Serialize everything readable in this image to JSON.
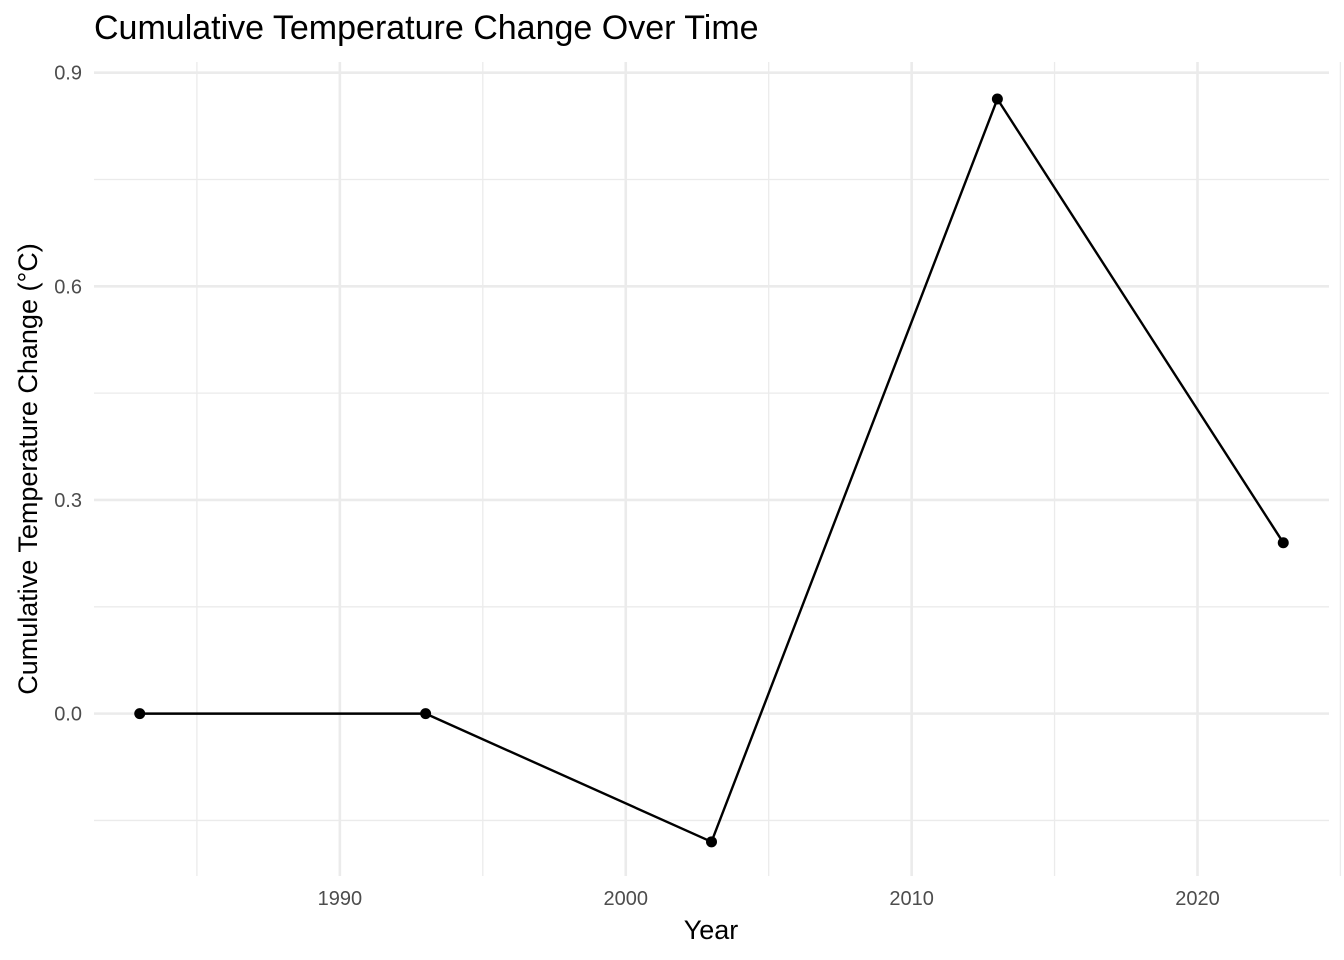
{
  "chart_data": {
    "type": "line",
    "title": "Cumulative Temperature Change Over Time",
    "xlabel": "Year",
    "ylabel": "Cumulative Temperature Change (°C)",
    "x": [
      1983,
      1993,
      2003,
      2013,
      2023
    ],
    "series": [
      {
        "values": [
          0.0,
          0.0,
          -0.18,
          0.863,
          0.24
        ]
      }
    ],
    "xlim": [
      1981.4,
      2024.6
    ],
    "ylim": [
      -0.228,
      0.915
    ],
    "x_ticks": [
      1990,
      2000,
      2010,
      2020
    ],
    "x_tick_labels": [
      "1990",
      "2000",
      "2010",
      "2020"
    ],
    "x_minor_ticks": [
      1985,
      1995,
      2005,
      2015,
      2025
    ],
    "y_ticks": [
      0.0,
      0.3,
      0.6,
      0.9
    ],
    "y_tick_labels": [
      "0.0",
      "0.3",
      "0.6",
      "0.9"
    ],
    "y_minor_ticks": [
      -0.15,
      0.15,
      0.45,
      0.75
    ],
    "grid": true,
    "legend": "none",
    "colors": {
      "line": "#000000",
      "point": "#000000",
      "grid": "#ebebeb",
      "tick_text": "#4d4d4d",
      "background": "#ffffff"
    }
  }
}
